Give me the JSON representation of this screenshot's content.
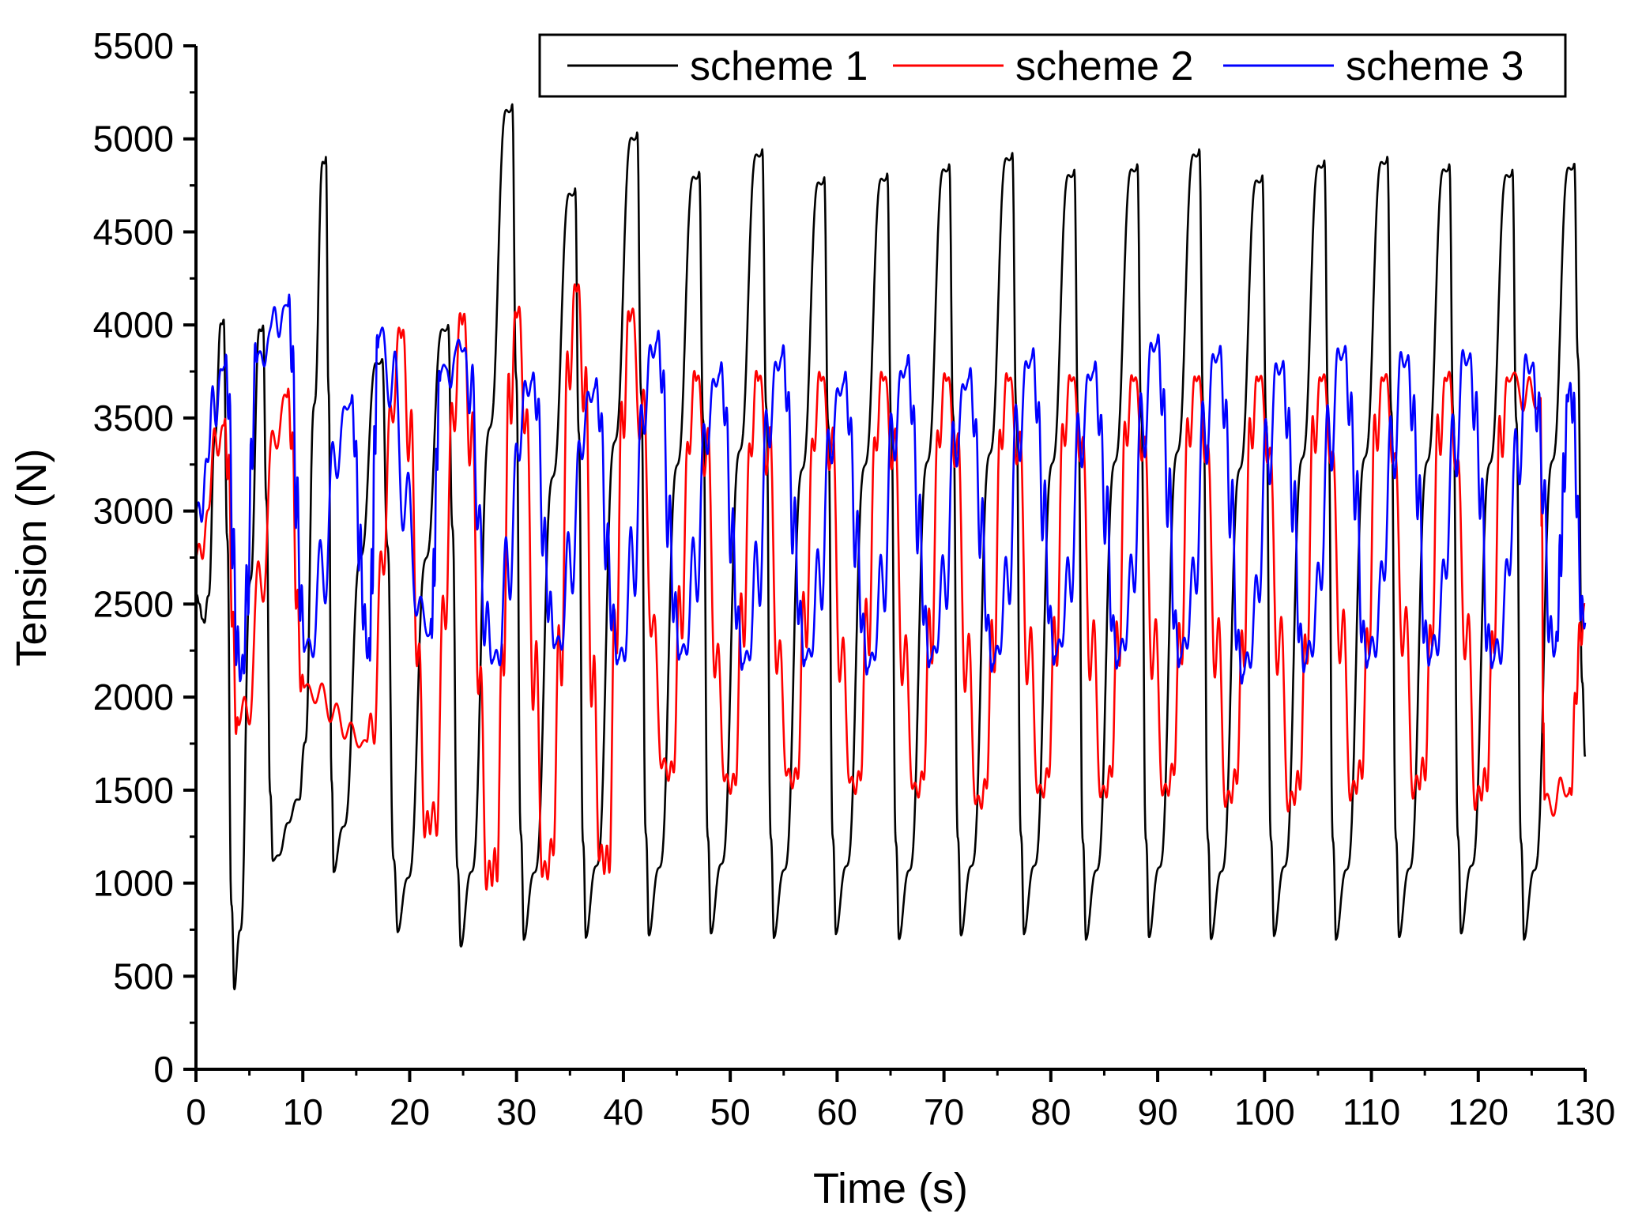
{
  "chart_data": {
    "type": "line",
    "title": "",
    "xlabel": "Time (s)",
    "ylabel": "Tension (N)",
    "xlim": [
      0,
      130
    ],
    "ylim": [
      0,
      5500
    ],
    "xticks": [
      0,
      10,
      20,
      30,
      40,
      50,
      60,
      70,
      80,
      90,
      100,
      110,
      120,
      130
    ],
    "yticks": [
      0,
      500,
      1000,
      1500,
      2000,
      2500,
      3000,
      3500,
      4000,
      4500,
      5000,
      5500
    ],
    "grid": false,
    "legend_position": "top-right",
    "series": [
      {
        "name": "scheme 1",
        "color": "#000000",
        "period_s": 5.85,
        "peaks": [
          [
            2.5,
            4010
          ],
          [
            6.2,
            3980
          ],
          [
            12.1,
            4880
          ],
          [
            17.3,
            3800
          ],
          [
            23.5,
            3980
          ],
          [
            29.5,
            5160
          ],
          [
            35.4,
            4710
          ],
          [
            41.2,
            5010
          ],
          [
            47.0,
            4800
          ],
          [
            52.9,
            4920
          ],
          [
            58.7,
            4770
          ],
          [
            64.6,
            4790
          ],
          [
            70.4,
            4840
          ],
          [
            76.3,
            4900
          ],
          [
            82.1,
            4810
          ],
          [
            88.0,
            4840
          ],
          [
            93.8,
            4920
          ],
          [
            99.7,
            4780
          ],
          [
            105.5,
            4860
          ],
          [
            111.4,
            4880
          ],
          [
            117.2,
            4840
          ],
          [
            123.1,
            4810
          ],
          [
            128.9,
            4850
          ]
        ],
        "troughs": [
          [
            0.8,
            2400
          ],
          [
            3.6,
            430
          ],
          [
            7.2,
            1120
          ],
          [
            9.7,
            1450
          ],
          [
            12.9,
            1060
          ],
          [
            18.9,
            740
          ],
          [
            24.8,
            660
          ],
          [
            30.7,
            700
          ],
          [
            36.5,
            710
          ],
          [
            42.4,
            720
          ],
          [
            48.2,
            730
          ],
          [
            54.1,
            710
          ],
          [
            59.9,
            730
          ],
          [
            65.8,
            700
          ],
          [
            71.6,
            720
          ],
          [
            77.5,
            730
          ],
          [
            83.3,
            700
          ],
          [
            89.2,
            710
          ],
          [
            95.0,
            700
          ],
          [
            100.9,
            720
          ],
          [
            106.7,
            700
          ],
          [
            112.6,
            710
          ],
          [
            118.4,
            730
          ],
          [
            124.3,
            700
          ]
        ],
        "end_value": 1680
      },
      {
        "name": "scheme 2",
        "color": "#ff0000",
        "peaks": [
          [
            2.6,
            3460
          ],
          [
            8.5,
            3610
          ],
          [
            19.2,
            3930
          ],
          [
            24.9,
            4000
          ],
          [
            30.0,
            4040
          ],
          [
            35.6,
            4180
          ],
          [
            40.6,
            4020
          ],
          [
            46.8,
            3700
          ],
          [
            52.6,
            3700
          ],
          [
            58.5,
            3700
          ],
          [
            64.3,
            3700
          ],
          [
            70.2,
            3700
          ],
          [
            76.0,
            3700
          ],
          [
            81.9,
            3700
          ],
          [
            87.7,
            3700
          ],
          [
            93.6,
            3700
          ],
          [
            99.4,
            3700
          ],
          [
            105.3,
            3700
          ],
          [
            111.1,
            3700
          ],
          [
            117.0,
            3700
          ],
          [
            122.8,
            3700
          ],
          [
            125.8,
            3580
          ]
        ],
        "troughs": [
          [
            4.0,
            1850
          ],
          [
            10.1,
            2050
          ],
          [
            16.0,
            1760
          ],
          [
            21.9,
            1260
          ],
          [
            27.7,
            980
          ],
          [
            32.9,
            1020
          ],
          [
            38.2,
            1050
          ],
          [
            44.2,
            1550
          ],
          [
            50.0,
            1480
          ],
          [
            55.8,
            1510
          ],
          [
            61.7,
            1480
          ],
          [
            67.6,
            1460
          ],
          [
            73.5,
            1400
          ],
          [
            79.3,
            1460
          ],
          [
            85.2,
            1460
          ],
          [
            91.0,
            1470
          ],
          [
            96.9,
            1430
          ],
          [
            102.8,
            1420
          ],
          [
            108.6,
            1480
          ],
          [
            114.5,
            1500
          ],
          [
            120.3,
            1440
          ],
          [
            126.2,
            1450
          ],
          [
            128.4,
            1480
          ]
        ],
        "end_value": 2500
      },
      {
        "name": "scheme 3",
        "color": "#0000ff",
        "peaks": [
          [
            2.7,
            3780
          ],
          [
            5.8,
            3840
          ],
          [
            8.6,
            4100
          ],
          [
            14.5,
            3580
          ],
          [
            17.1,
            3930
          ],
          [
            22.9,
            3740
          ],
          [
            25.0,
            3860
          ],
          [
            31.4,
            3700
          ],
          [
            37.3,
            3660
          ],
          [
            43.1,
            3910
          ],
          [
            49.0,
            3740
          ],
          [
            54.8,
            3830
          ],
          [
            60.6,
            3690
          ],
          [
            66.5,
            3780
          ],
          [
            72.3,
            3710
          ],
          [
            78.2,
            3820
          ],
          [
            84.0,
            3750
          ],
          [
            89.9,
            3900
          ],
          [
            95.7,
            3840
          ],
          [
            101.6,
            3770
          ],
          [
            107.4,
            3850
          ],
          [
            113.3,
            3810
          ],
          [
            119.1,
            3820
          ],
          [
            125.0,
            3780
          ],
          [
            128.5,
            3660
          ]
        ],
        "troughs": [
          [
            4.2,
            2100
          ],
          [
            10.2,
            2260
          ],
          [
            16.1,
            2220
          ],
          [
            21.9,
            2340
          ],
          [
            27.8,
            2200
          ],
          [
            33.6,
            2280
          ],
          [
            39.5,
            2200
          ],
          [
            45.3,
            2230
          ],
          [
            51.2,
            2180
          ],
          [
            57.0,
            2200
          ],
          [
            62.9,
            2160
          ],
          [
            68.7,
            2200
          ],
          [
            74.6,
            2180
          ],
          [
            80.4,
            2220
          ],
          [
            86.3,
            2200
          ],
          [
            92.1,
            2210
          ],
          [
            98.0,
            2120
          ],
          [
            103.8,
            2180
          ],
          [
            109.7,
            2200
          ],
          [
            115.5,
            2210
          ],
          [
            121.4,
            2190
          ],
          [
            127.2,
            2250
          ]
        ],
        "end_value": 2400
      }
    ]
  }
}
